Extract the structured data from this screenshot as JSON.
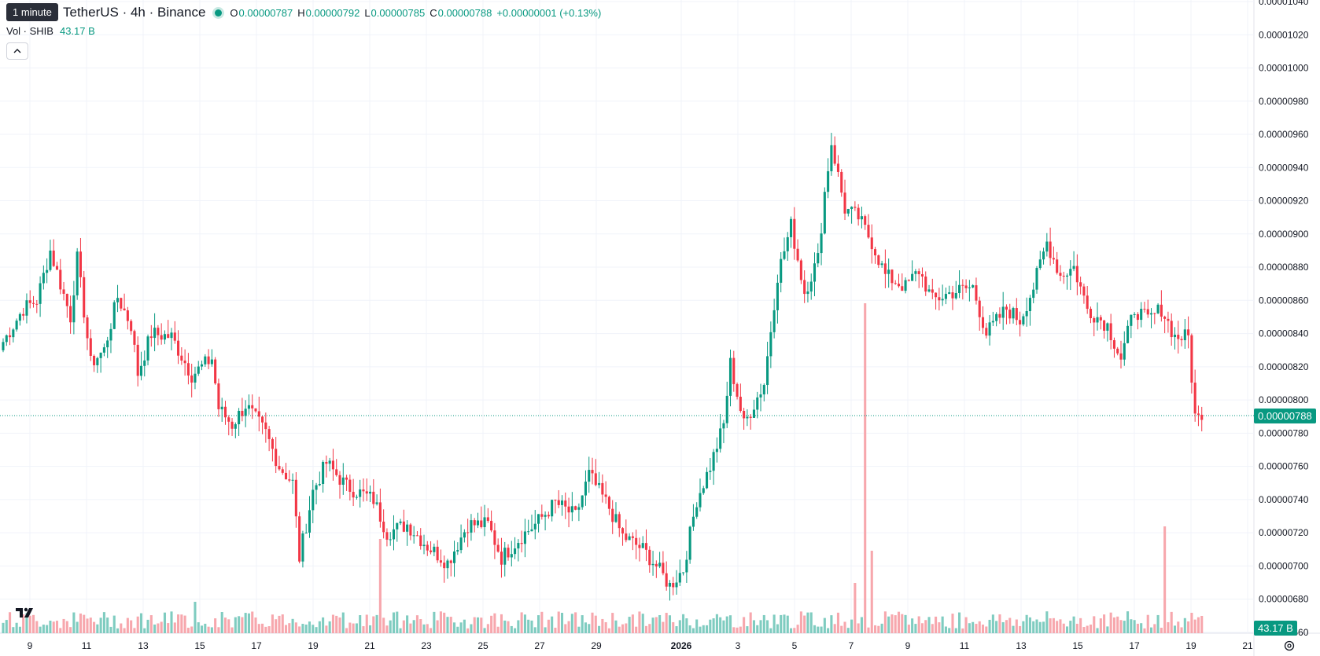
{
  "legend": {
    "tooltip": "1 minute",
    "symbol": "TetherUS · 4h · Binance",
    "open_label": "O",
    "open": "0.00000787",
    "high_label": "H",
    "high": "0.00000792",
    "low_label": "L",
    "low": "0.00000785",
    "close_label": "C",
    "close": "0.00000788",
    "change": "+0.00000001 (+0.13%)",
    "vol_label": "Vol · SHIB",
    "vol_value": "43.17 B"
  },
  "price_tag": "0.00000788",
  "volume_tag": "43.17 B",
  "colors": {
    "up": "#089981",
    "down": "#f23645",
    "up_vol": "#7fccc0",
    "down_vol": "#f7a7ad",
    "grid": "#f0f3fa"
  },
  "chart_data": {
    "type": "candlestick",
    "timeframe": "4h",
    "x_tick_labels": [
      "9",
      "11",
      "13",
      "15",
      "17",
      "19",
      "21",
      "23",
      "25",
      "27",
      "29",
      "2026",
      "3",
      "5",
      "7",
      "9",
      "11",
      "13",
      "15",
      "17",
      "19",
      "21"
    ],
    "y_tick_labels": [
      "0.00000660",
      "0.00000680",
      "0.00000700",
      "0.00000720",
      "0.00000740",
      "0.00000760",
      "0.00000780",
      "0.00000800",
      "0.00000820",
      "0.00000840",
      "0.00000860",
      "0.00000880",
      "0.00000900",
      "0.00000920",
      "0.00000940",
      "0.00000960",
      "0.00000980",
      "0.00001000",
      "0.00001020",
      "0.00001040"
    ],
    "ylim": [
      6.5e-06,
      1.04e-05
    ],
    "last_close": 7.88e-06,
    "close_keyframes": [
      [
        0,
        8.35e-06
      ],
      [
        6,
        8.55e-06
      ],
      [
        10,
        8.6e-06
      ],
      [
        14,
        8.9e-06
      ],
      [
        20,
        8.5e-06
      ],
      [
        22,
        8.85e-06
      ],
      [
        26,
        8.22e-06
      ],
      [
        30,
        8.3e-06
      ],
      [
        34,
        8.62e-06
      ],
      [
        38,
        8.45e-06
      ],
      [
        40,
        8.16e-06
      ],
      [
        44,
        8.4e-06
      ],
      [
        50,
        8.38e-06
      ],
      [
        56,
        8.15e-06
      ],
      [
        62,
        8.25e-06
      ],
      [
        64,
        7.95e-06
      ],
      [
        68,
        7.85e-06
      ],
      [
        72,
        7.97e-06
      ],
      [
        78,
        7.8e-06
      ],
      [
        82,
        7.6e-06
      ],
      [
        86,
        7.5e-06
      ],
      [
        88,
        7.05e-06
      ],
      [
        92,
        7.45e-06
      ],
      [
        96,
        7.62e-06
      ],
      [
        102,
        7.48e-06
      ],
      [
        110,
        7.4e-06
      ],
      [
        114,
        7.2e-06
      ],
      [
        120,
        7.25e-06
      ],
      [
        126,
        7.12e-06
      ],
      [
        132,
        7.02e-06
      ],
      [
        138,
        7.25e-06
      ],
      [
        144,
        7.25e-06
      ],
      [
        148,
        7.05e-06
      ],
      [
        154,
        7.18e-06
      ],
      [
        158,
        7.25e-06
      ],
      [
        164,
        7.38e-06
      ],
      [
        170,
        7.3e-06
      ],
      [
        174,
        7.55e-06
      ],
      [
        180,
        7.35e-06
      ],
      [
        184,
        7.18e-06
      ],
      [
        190,
        7.1e-06
      ],
      [
        194,
        7e-06
      ],
      [
        198,
        6.88e-06
      ],
      [
        202,
        6.98e-06
      ],
      [
        206,
        7.4e-06
      ],
      [
        210,
        7.6e-06
      ],
      [
        214,
        7.85e-06
      ],
      [
        216,
        8.22e-06
      ],
      [
        220,
        7.85e-06
      ],
      [
        226,
        8.1e-06
      ],
      [
        230,
        8.75e-06
      ],
      [
        234,
        9.05e-06
      ],
      [
        238,
        8.65e-06
      ],
      [
        242,
        8.85e-06
      ],
      [
        244,
        9.25e-06
      ],
      [
        246,
        9.55e-06
      ],
      [
        250,
        9.15e-06
      ],
      [
        254,
        9.1e-06
      ],
      [
        258,
        8.95e-06
      ],
      [
        262,
        8.75e-06
      ],
      [
        268,
        8.68e-06
      ],
      [
        272,
        8.78e-06
      ],
      [
        276,
        8.6e-06
      ],
      [
        282,
        8.65e-06
      ],
      [
        288,
        8.68e-06
      ],
      [
        292,
        8.4e-06
      ],
      [
        298,
        8.55e-06
      ],
      [
        302,
        8.48e-06
      ],
      [
        306,
        8.68e-06
      ],
      [
        310,
        8.95e-06
      ],
      [
        314,
        8.75e-06
      ],
      [
        318,
        8.8e-06
      ],
      [
        322,
        8.55e-06
      ],
      [
        328,
        8.45e-06
      ],
      [
        332,
        8.25e-06
      ],
      [
        336,
        8.55e-06
      ],
      [
        340,
        8.48e-06
      ],
      [
        344,
        8.55e-06
      ],
      [
        348,
        8.38e-06
      ],
      [
        352,
        8.38e-06
      ],
      [
        354,
        7.9e-06
      ],
      [
        356,
        7.88e-06
      ]
    ],
    "volume_spikes": [
      [
        57,
        40
      ],
      [
        112,
        120
      ],
      [
        253,
        64
      ],
      [
        256,
        420
      ],
      [
        258,
        105
      ],
      [
        345,
        136
      ]
    ]
  }
}
